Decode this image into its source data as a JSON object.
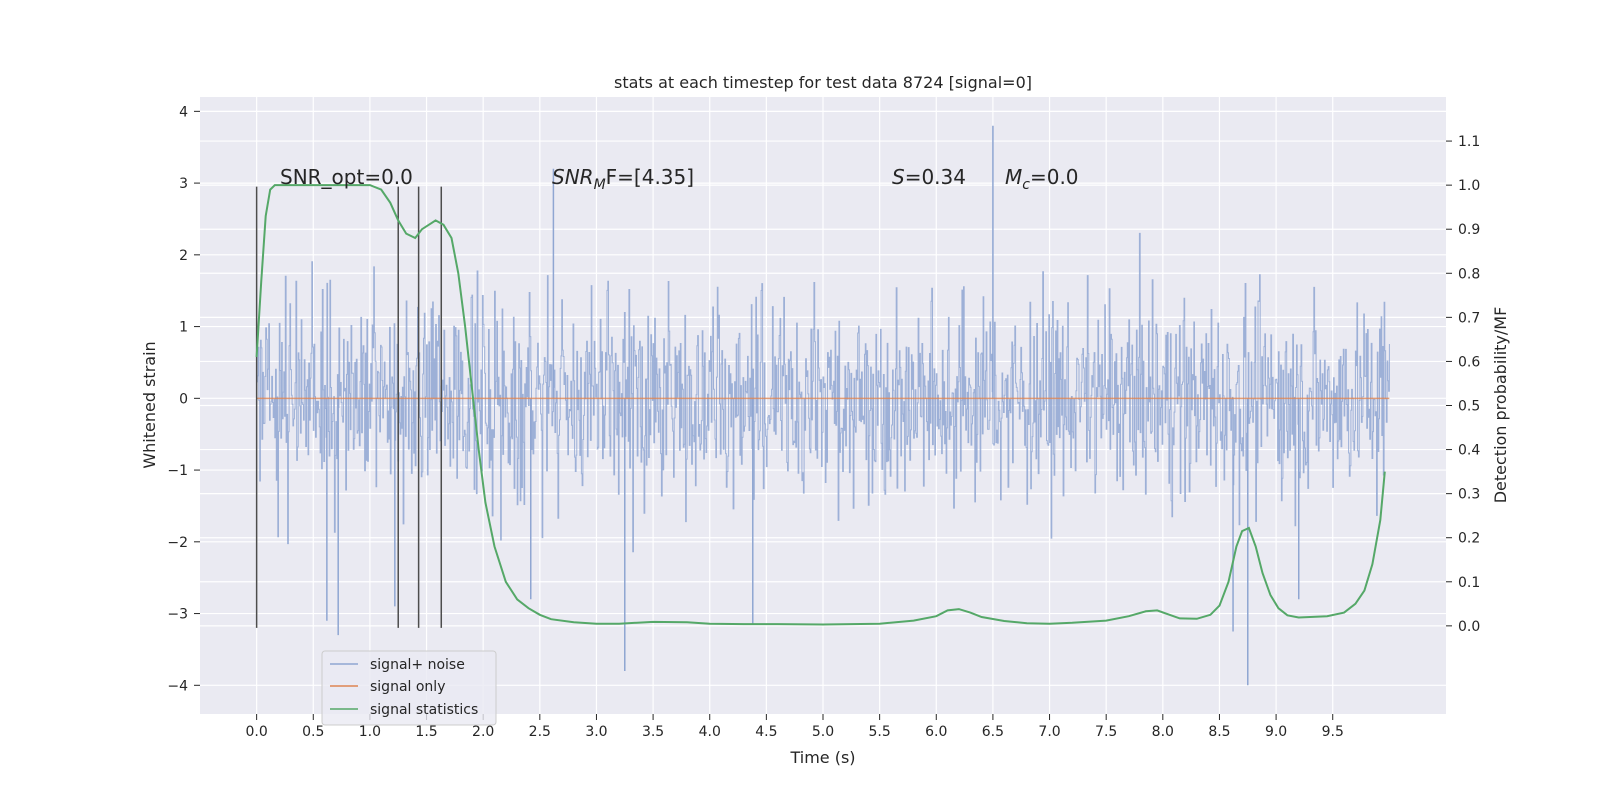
{
  "chart_data": {
    "type": "line",
    "title": "stats at each timestep for test data 8724 [signal=0]",
    "xlabel": "Time (s)",
    "ylabel": "Whitened strain",
    "y2label": "Detection probability/MF",
    "xlim": [
      -0.5,
      10.5
    ],
    "ylim": [
      -4.4,
      4.2
    ],
    "y2lim": [
      -0.2,
      1.2
    ],
    "x_ticks": [
      "0.0",
      "0.5",
      "1.0",
      "1.5",
      "2.0",
      "2.5",
      "3.0",
      "3.5",
      "4.0",
      "4.5",
      "5.0",
      "5.5",
      "6.0",
      "6.5",
      "7.0",
      "7.5",
      "8.0",
      "8.5",
      "9.0",
      "9.5"
    ],
    "y_ticks": [
      "4",
      "3",
      "2",
      "1",
      "0",
      "−1",
      "−2",
      "−3",
      "−4"
    ],
    "y2_ticks": [
      "1.1",
      "1.0",
      "0.9",
      "0.8",
      "0.7",
      "0.6",
      "0.5",
      "0.4",
      "0.3",
      "0.2",
      "0.1",
      "0.0"
    ],
    "grid": true,
    "legend_position": "lower-left",
    "annotations": {
      "snr_opt": "SNR_opt=0.0",
      "snr_mf_var": "SNR",
      "snr_mf_sub": "M",
      "snr_mf_rest": "F=[4.35]",
      "s_var": "S",
      "s_value": "=0.34",
      "mc_var": "M",
      "mc_sub": "c",
      "mc_value": "=0.0"
    },
    "vertical_markers_x": [
      0.0,
      1.25,
      1.43,
      1.63
    ],
    "vertical_markers_range": [
      -3.2,
      2.95
    ],
    "series": [
      {
        "name": "signal+ noise",
        "color": "#8fa6d2",
        "x_range": [
          0.0,
          10.0
        ],
        "typical_envelope": [
          -2.0,
          2.6
        ],
        "x": [
          0.62,
          0.72,
          1.22,
          2.42,
          2.62,
          3.25,
          4.38,
          6.5,
          8.62,
          8.75,
          9.2
        ],
        "values": [
          -3.1,
          -3.3,
          -2.9,
          -2.8,
          3.2,
          -3.8,
          -3.15,
          3.8,
          -3.25,
          -4.0,
          -2.8
        ]
      },
      {
        "name": "signal only",
        "color": "#dd8452",
        "x": [
          0.0,
          10.0
        ],
        "values": [
          0.0,
          0.0
        ]
      },
      {
        "name": "signal statistics",
        "color": "#55a868",
        "x": [
          0.0,
          0.04,
          0.08,
          0.12,
          0.16,
          0.22,
          0.3,
          0.4,
          0.5,
          0.6,
          0.7,
          0.8,
          0.9,
          1.0,
          1.1,
          1.18,
          1.25,
          1.32,
          1.4,
          1.46,
          1.52,
          1.58,
          1.65,
          1.72,
          1.78,
          1.84,
          1.9,
          1.96,
          2.02,
          2.1,
          2.2,
          2.3,
          2.4,
          2.5,
          2.6,
          2.8,
          3.0,
          3.2,
          3.5,
          3.8,
          4.0,
          4.3,
          4.6,
          5.0,
          5.5,
          5.8,
          6.0,
          6.1,
          6.2,
          6.3,
          6.4,
          6.6,
          6.8,
          7.0,
          7.2,
          7.5,
          7.7,
          7.85,
          7.95,
          8.05,
          8.15,
          8.3,
          8.42,
          8.5,
          8.58,
          8.65,
          8.7,
          8.76,
          8.82,
          8.88,
          8.95,
          9.02,
          9.1,
          9.2,
          9.3,
          9.45,
          9.6,
          9.7,
          9.78,
          9.85,
          9.92,
          9.96
        ],
        "values": [
          0.61,
          0.78,
          0.93,
          0.99,
          1.0,
          1.0,
          1.0,
          1.0,
          1.0,
          1.0,
          1.0,
          1.0,
          1.0,
          1.0,
          0.99,
          0.96,
          0.92,
          0.89,
          0.88,
          0.9,
          0.91,
          0.92,
          0.91,
          0.88,
          0.8,
          0.68,
          0.54,
          0.4,
          0.28,
          0.18,
          0.1,
          0.06,
          0.04,
          0.025,
          0.015,
          0.008,
          0.005,
          0.005,
          0.009,
          0.008,
          0.005,
          0.004,
          0.004,
          0.003,
          0.005,
          0.012,
          0.022,
          0.035,
          0.038,
          0.03,
          0.02,
          0.011,
          0.006,
          0.005,
          0.007,
          0.012,
          0.022,
          0.033,
          0.035,
          0.026,
          0.017,
          0.016,
          0.025,
          0.046,
          0.1,
          0.18,
          0.215,
          0.222,
          0.18,
          0.12,
          0.07,
          0.04,
          0.024,
          0.019,
          0.02,
          0.022,
          0.03,
          0.05,
          0.08,
          0.14,
          0.24,
          0.35
        ]
      }
    ]
  }
}
